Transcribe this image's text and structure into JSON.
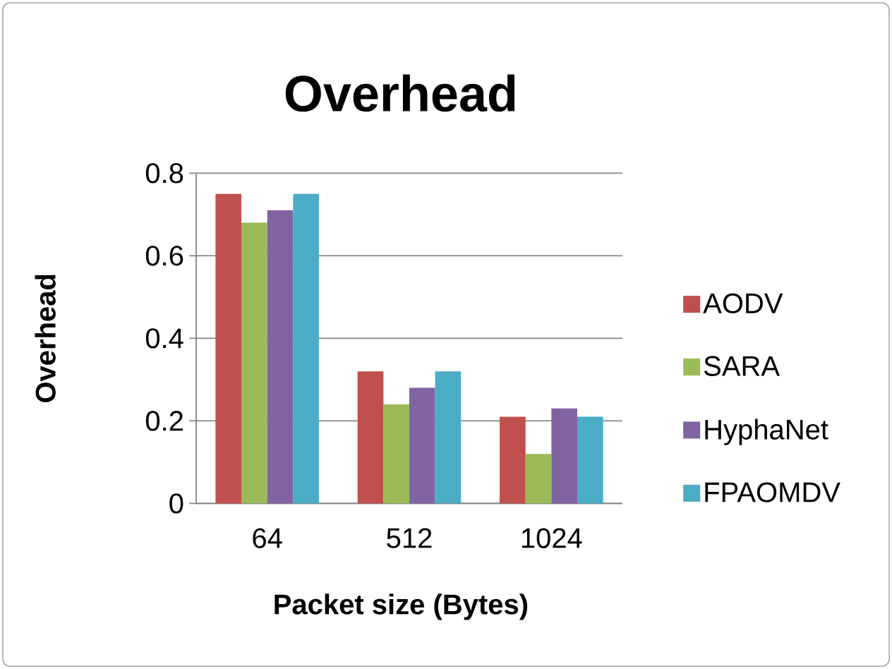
{
  "chart_data": {
    "type": "bar",
    "title": "Overhead",
    "xlabel": "Packet size (Bytes)",
    "ylabel": "Overhead",
    "categories": [
      "64",
      "512",
      "1024"
    ],
    "series": [
      {
        "name": "AODV",
        "color": "#c0504d",
        "values": [
          0.75,
          0.32,
          0.21
        ]
      },
      {
        "name": "SARA",
        "color": "#9bbb59",
        "values": [
          0.68,
          0.24,
          0.12
        ]
      },
      {
        "name": "HyphaNet",
        "color": "#8064a2",
        "values": [
          0.71,
          0.28,
          0.23
        ]
      },
      {
        "name": "FPAOMDV",
        "color": "#4bacc6",
        "values": [
          0.75,
          0.32,
          0.21
        ]
      }
    ],
    "ylim": [
      0,
      0.8
    ],
    "yticks": [
      0,
      0.2,
      0.4,
      0.6,
      0.8
    ],
    "grid": "y",
    "legend": "right"
  }
}
